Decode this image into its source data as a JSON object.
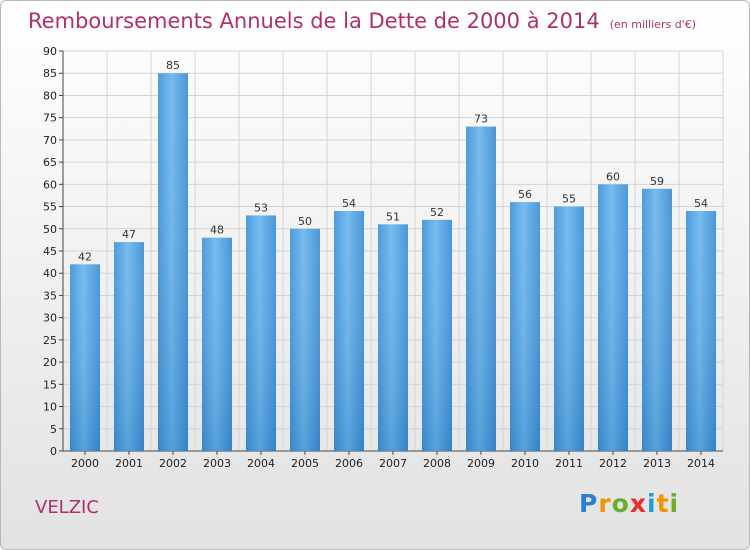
{
  "title": "Remboursements Annuels de la Dette de 2000 à 2014",
  "subtitle": "(en milliers d'€)",
  "commune": "VELZIC",
  "logo": {
    "letters": [
      "P",
      "r",
      "o",
      "x",
      "i",
      "t",
      "i"
    ],
    "colors": [
      "#2b7fd1",
      "#f29400",
      "#6cae2c",
      "#e62e2e",
      "#1a9fd9",
      "#f29400",
      "#6cae2c"
    ]
  },
  "colors": {
    "bar": "#4a9fe0",
    "bar_light": "#6db8f0",
    "bar_dark": "#2f7fc4",
    "title": "#b0306a",
    "grid": "#cfcfcf"
  },
  "chart_data": {
    "type": "bar",
    "title": "Remboursements Annuels de la Dette de 2000 à 2014",
    "subtitle": "(en milliers d'€)",
    "xlabel": "",
    "ylabel": "",
    "ylim": [
      0,
      90
    ],
    "yticks": [
      0,
      5,
      10,
      15,
      20,
      25,
      30,
      35,
      40,
      45,
      50,
      55,
      60,
      65,
      70,
      75,
      80,
      85,
      90
    ],
    "grid": true,
    "categories": [
      "2000",
      "2001",
      "2002",
      "2003",
      "2004",
      "2005",
      "2006",
      "2007",
      "2008",
      "2009",
      "2010",
      "2011",
      "2012",
      "2013",
      "2014"
    ],
    "values": [
      42,
      47,
      85,
      48,
      53,
      50,
      54,
      51,
      52,
      73,
      56,
      55,
      60,
      59,
      54
    ]
  }
}
